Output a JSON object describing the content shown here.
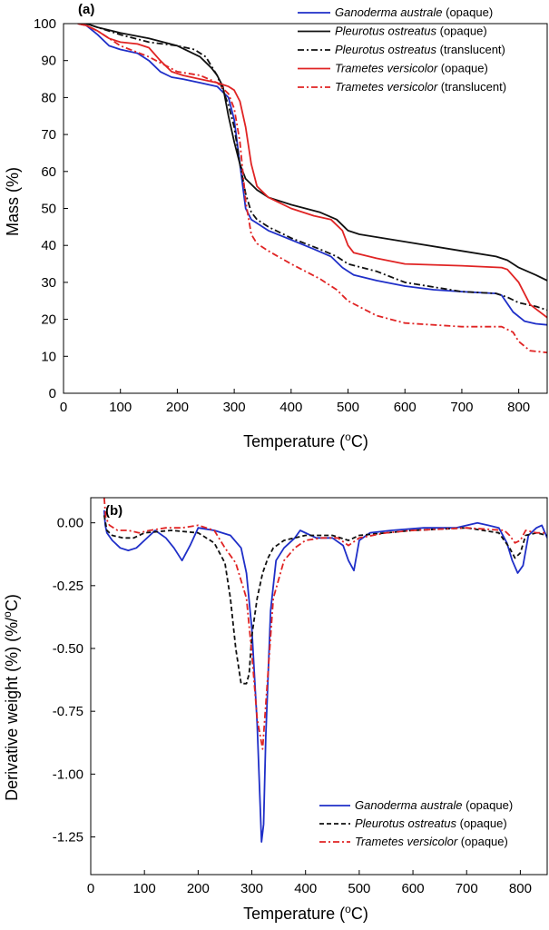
{
  "chart_data": [
    {
      "type": "line",
      "panel_label": "(a)",
      "xlabel_main": "Temperature (",
      "xlabel_sup": "o",
      "xlabel_end": "C)",
      "ylabel": "Mass (%)",
      "xlim": [
        0,
        850
      ],
      "ylim": [
        0,
        100
      ],
      "xticks": [
        0,
        100,
        200,
        300,
        400,
        500,
        600,
        700,
        800
      ],
      "yticks": [
        0,
        10,
        20,
        30,
        40,
        50,
        60,
        70,
        80,
        90,
        100
      ],
      "legend_position": "top-right",
      "series": [
        {
          "species": "Ganoderma australe",
          "note": "(opaque)",
          "color": "#1f2fc8",
          "dash": "solid",
          "x": [
            25,
            40,
            60,
            80,
            100,
            130,
            150,
            170,
            190,
            210,
            240,
            270,
            290,
            300,
            310,
            320,
            330,
            340,
            360,
            400,
            440,
            470,
            490,
            510,
            550,
            600,
            650,
            700,
            760,
            770,
            790,
            810,
            830,
            850
          ],
          "y": [
            100,
            99.5,
            97,
            94,
            93,
            92,
            90,
            87,
            85.5,
            85,
            84,
            83,
            80,
            74,
            62,
            50,
            47,
            46,
            44,
            41.5,
            39,
            37,
            34,
            32,
            30.5,
            29,
            28,
            27.5,
            27,
            26.5,
            22,
            19.5,
            18.8,
            18.5
          ]
        },
        {
          "species": "Pleurotus ostreatus",
          "note": "(opaque)",
          "color": "#111111",
          "dash": "solid",
          "x": [
            25,
            40,
            60,
            100,
            150,
            200,
            240,
            260,
            270,
            280,
            290,
            300,
            310,
            320,
            340,
            360,
            400,
            450,
            480,
            500,
            520,
            600,
            700,
            760,
            780,
            800,
            830,
            850
          ],
          "y": [
            100,
            100,
            99,
            97.5,
            96,
            94,
            91,
            88,
            86,
            83,
            75,
            68,
            62,
            58,
            55,
            53,
            51,
            49,
            47,
            44,
            43,
            41,
            38.5,
            37,
            36,
            34,
            32,
            30.5
          ]
        },
        {
          "species": "Pleurotus ostreatus",
          "note": "(translucent)",
          "color": "#111111",
          "dash": "dashdot",
          "x": [
            25,
            40,
            60,
            100,
            150,
            200,
            230,
            250,
            270,
            280,
            290,
            300,
            310,
            320,
            330,
            340,
            360,
            400,
            450,
            480,
            500,
            550,
            600,
            700,
            760,
            780,
            800,
            830,
            850
          ],
          "y": [
            100,
            100,
            99,
            97,
            95,
            94,
            93,
            91,
            86,
            82,
            78,
            72,
            62,
            54,
            49,
            47,
            45,
            42,
            39,
            37,
            35,
            33,
            30,
            27.5,
            27,
            26,
            24.5,
            23.5,
            22.5
          ]
        },
        {
          "species": "Trametes versicolor",
          "note": "(opaque)",
          "color": "#e02424",
          "dash": "solid",
          "x": [
            25,
            40,
            60,
            80,
            100,
            130,
            150,
            170,
            190,
            210,
            240,
            270,
            290,
            300,
            310,
            320,
            330,
            340,
            360,
            400,
            440,
            470,
            490,
            500,
            510,
            550,
            600,
            700,
            770,
            780,
            800,
            820,
            850
          ],
          "y": [
            100,
            99.5,
            98,
            96,
            95,
            94.5,
            93.5,
            90,
            87,
            86,
            85,
            84,
            83,
            82,
            79,
            72,
            62,
            56,
            53,
            50,
            48,
            47,
            44,
            40,
            38,
            36.5,
            35,
            34.5,
            34,
            33.5,
            30,
            24,
            20.5
          ]
        },
        {
          "species": "Trametes versicolor",
          "note": "(translucent)",
          "color": "#e02424",
          "dash": "dashdot",
          "x": [
            25,
            40,
            60,
            100,
            150,
            200,
            240,
            270,
            290,
            300,
            310,
            320,
            330,
            340,
            360,
            400,
            450,
            480,
            500,
            550,
            600,
            700,
            770,
            790,
            800,
            820,
            850
          ],
          "y": [
            100,
            99.5,
            98,
            94,
            91,
            87,
            86,
            84,
            81,
            77,
            68,
            52,
            43,
            40.5,
            38.5,
            35,
            31,
            28,
            25,
            21,
            19,
            18,
            18,
            16.5,
            14,
            11.5,
            11
          ]
        }
      ]
    },
    {
      "type": "line",
      "panel_label": "(b)",
      "xlabel_main": "Temperature (",
      "xlabel_sup": "o",
      "xlabel_end": "C)",
      "ylabel_main": "Derivative weight (%) (%/",
      "ylabel_sup": "o",
      "ylabel_end": "C)",
      "xlim": [
        0,
        850
      ],
      "ylim": [
        -1.4,
        0.1
      ],
      "xticks": [
        0,
        100,
        200,
        300,
        400,
        500,
        600,
        700,
        800
      ],
      "xtick_labels": [
        "0",
        "100",
        "200",
        "300",
        "400",
        "500",
        "600",
        "700",
        "800"
      ],
      "yticks": [
        0,
        -0.25,
        -0.5,
        -0.75,
        -1.0,
        -1.25
      ],
      "ytick_labels": [
        "0.00",
        "-0.25",
        "-0.50",
        "-0.75",
        "-1.00",
        "-1.25"
      ],
      "legend_position": "bottom-right",
      "series": [
        {
          "species": "Ganoderma australe",
          "note": "(opaque)",
          "color": "#1f2fc8",
          "dash": "solid",
          "x": [
            25,
            27,
            30,
            40,
            55,
            70,
            85,
            100,
            120,
            140,
            155,
            170,
            185,
            200,
            230,
            260,
            280,
            290,
            300,
            310,
            318,
            322,
            326,
            335,
            345,
            360,
            380,
            390,
            420,
            450,
            470,
            480,
            490,
            500,
            520,
            560,
            620,
            680,
            720,
            740,
            760,
            775,
            785,
            795,
            805,
            815,
            830,
            840,
            850
          ],
          "y": [
            0.05,
            -0.01,
            -0.04,
            -0.07,
            -0.1,
            -0.11,
            -0.1,
            -0.07,
            -0.03,
            -0.06,
            -0.1,
            -0.15,
            -0.09,
            -0.02,
            -0.03,
            -0.05,
            -0.1,
            -0.2,
            -0.42,
            -0.8,
            -1.27,
            -1.2,
            -0.85,
            -0.35,
            -0.15,
            -0.1,
            -0.06,
            -0.03,
            -0.06,
            -0.06,
            -0.09,
            -0.15,
            -0.19,
            -0.07,
            -0.04,
            -0.03,
            -0.02,
            -0.02,
            0.0,
            -0.01,
            -0.02,
            -0.08,
            -0.15,
            -0.2,
            -0.17,
            -0.05,
            -0.02,
            -0.01,
            -0.06
          ]
        },
        {
          "species": "Pleurotus ostreatus",
          "note": "(opaque)",
          "color": "#111111",
          "dash": "dashed",
          "x": [
            25,
            30,
            40,
            60,
            80,
            100,
            150,
            200,
            230,
            250,
            260,
            270,
            280,
            290,
            295,
            300,
            310,
            320,
            330,
            340,
            360,
            400,
            450,
            480,
            500,
            550,
            600,
            700,
            760,
            780,
            790,
            800,
            810,
            830,
            850
          ],
          "y": [
            0.03,
            -0.03,
            -0.05,
            -0.06,
            -0.06,
            -0.04,
            -0.03,
            -0.04,
            -0.08,
            -0.16,
            -0.3,
            -0.5,
            -0.64,
            -0.64,
            -0.6,
            -0.45,
            -0.3,
            -0.2,
            -0.14,
            -0.1,
            -0.07,
            -0.05,
            -0.05,
            -0.07,
            -0.05,
            -0.04,
            -0.03,
            -0.02,
            -0.04,
            -0.1,
            -0.14,
            -0.12,
            -0.05,
            -0.04,
            -0.05
          ]
        },
        {
          "species": "Trametes versicolor",
          "note": "(opaque)",
          "color": "#e02424",
          "dash": "dashdot",
          "x": [
            25,
            28,
            35,
            50,
            70,
            90,
            110,
            140,
            170,
            200,
            230,
            250,
            270,
            290,
            300,
            310,
            320,
            330,
            340,
            360,
            380,
            400,
            430,
            460,
            480,
            500,
            550,
            600,
            700,
            770,
            780,
            790,
            800,
            810,
            830,
            850
          ],
          "y": [
            0.1,
            0.02,
            -0.01,
            -0.03,
            -0.03,
            -0.04,
            -0.03,
            -0.02,
            -0.02,
            -0.01,
            -0.03,
            -0.1,
            -0.16,
            -0.3,
            -0.52,
            -0.78,
            -0.9,
            -0.6,
            -0.3,
            -0.15,
            -0.1,
            -0.07,
            -0.06,
            -0.06,
            -0.09,
            -0.06,
            -0.04,
            -0.03,
            -0.02,
            -0.03,
            -0.05,
            -0.08,
            -0.07,
            -0.03,
            -0.04,
            -0.04
          ]
        }
      ]
    }
  ]
}
